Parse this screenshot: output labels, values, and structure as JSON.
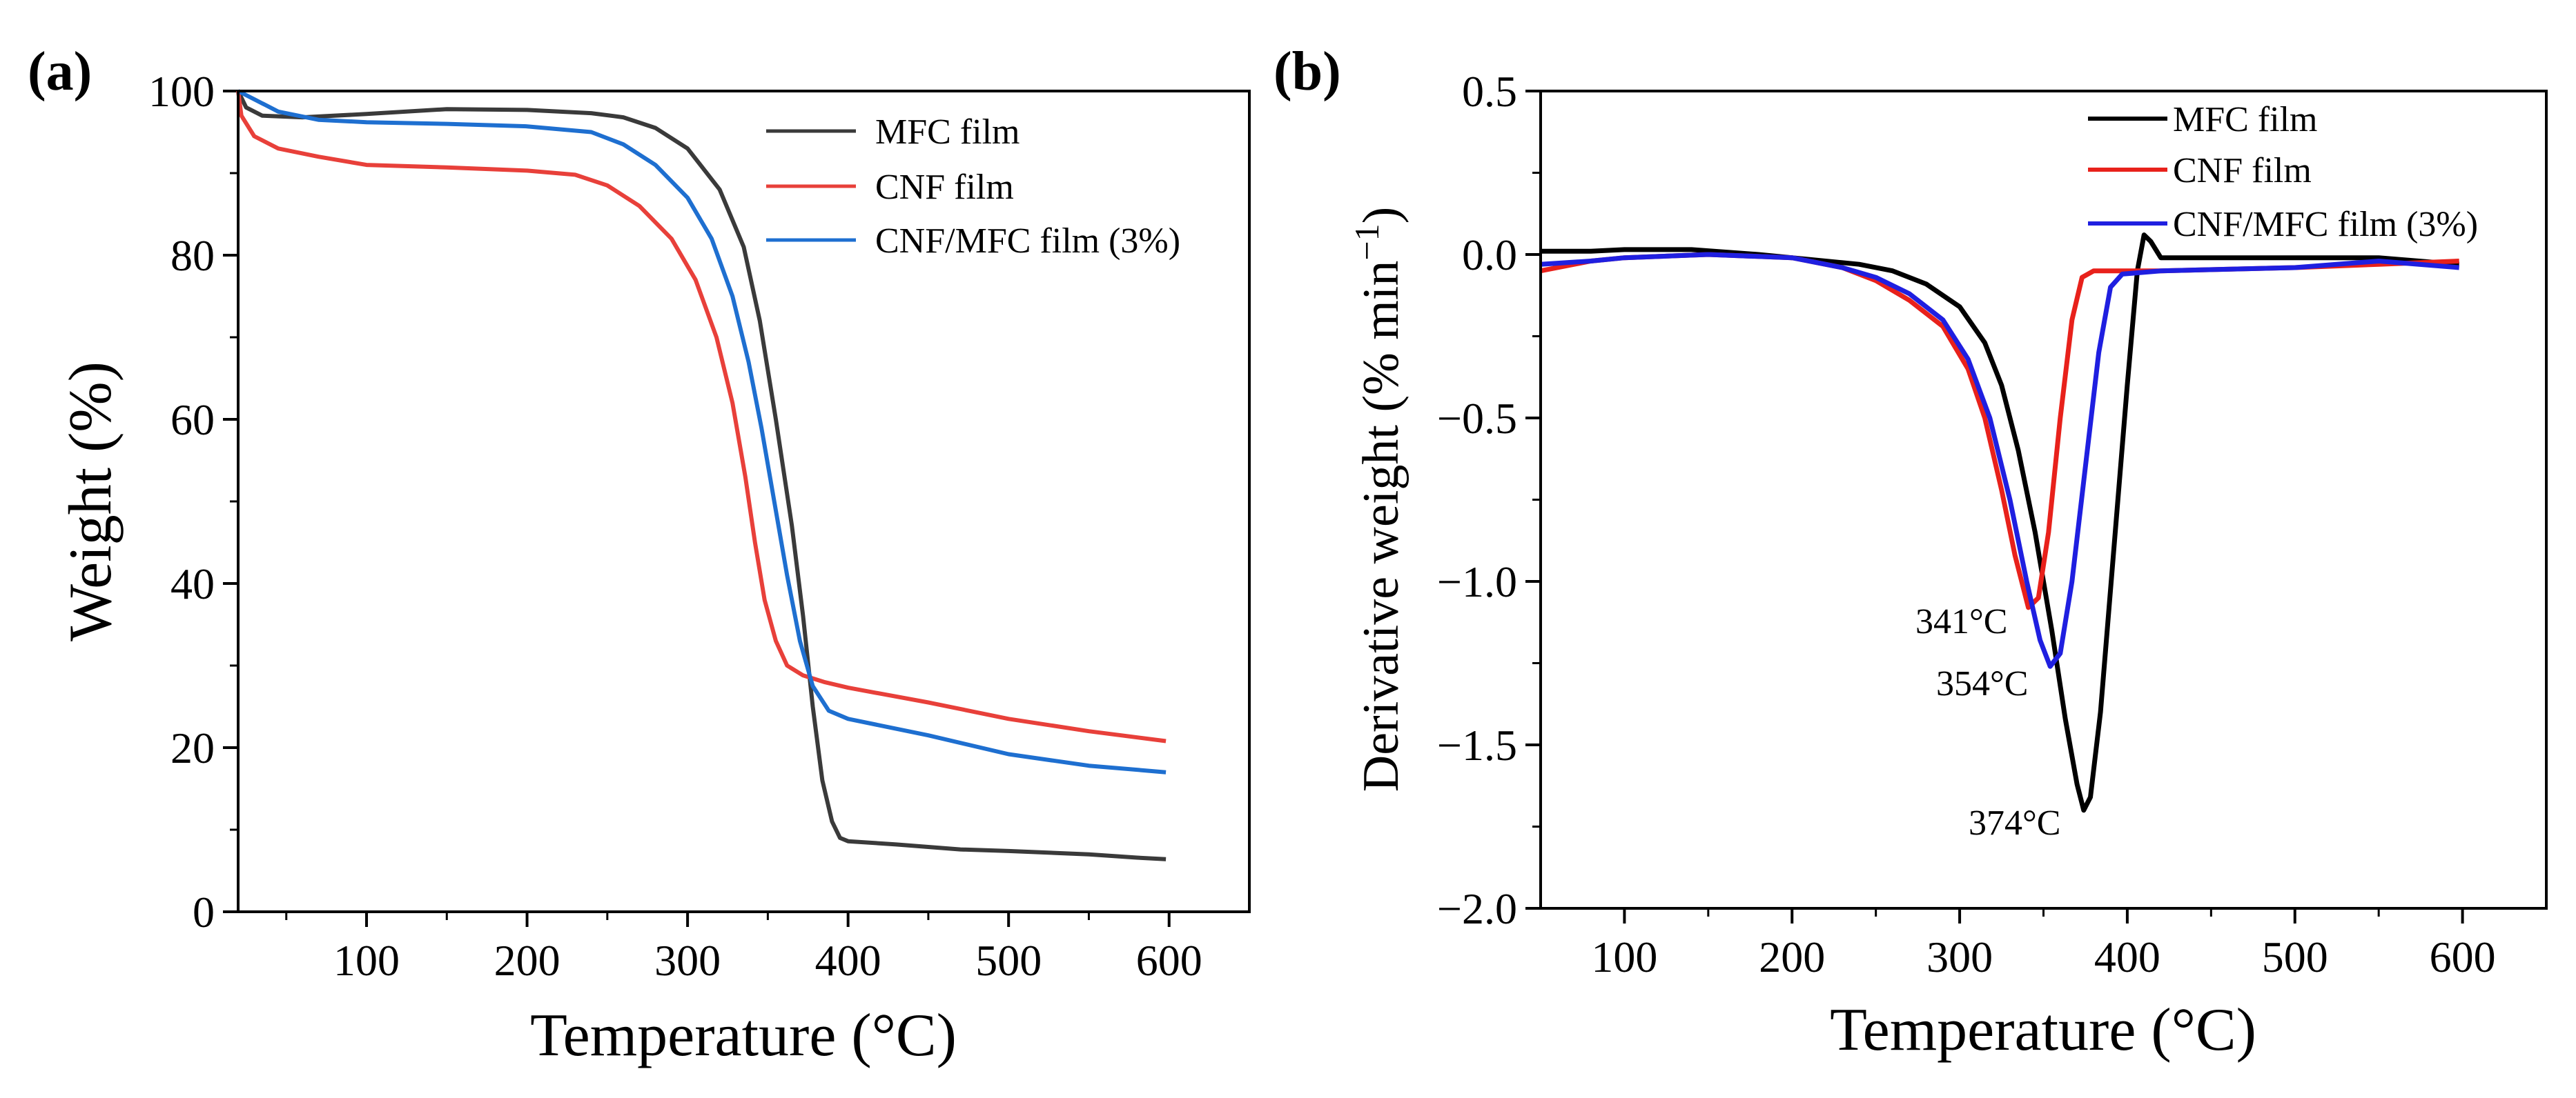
{
  "chart_data": [
    {
      "panel_label": "(a)",
      "type": "line",
      "title": "",
      "xlabel": "Temperature (°C)",
      "ylabel": "Weight (%)",
      "xlim": [
        20,
        650
      ],
      "ylim": [
        0,
        100
      ],
      "xticks": [
        100,
        200,
        300,
        400,
        500,
        600
      ],
      "yticks": [
        0,
        20,
        40,
        60,
        80,
        100
      ],
      "xtick_labels": [
        "100",
        "200",
        "300",
        "400",
        "500",
        "600"
      ],
      "ytick_labels": [
        "0",
        "20",
        "40",
        "60",
        "80",
        "100"
      ],
      "legend_position": "top-right",
      "series": [
        {
          "name": "MFC film",
          "color": "#3a3a3a",
          "points": [
            [
              20,
              100
            ],
            [
              25,
              98
            ],
            [
              35,
              97
            ],
            [
              60,
              96.8
            ],
            [
              100,
              97.2
            ],
            [
              150,
              97.8
            ],
            [
              200,
              97.7
            ],
            [
              240,
              97.3
            ],
            [
              260,
              96.8
            ],
            [
              280,
              95.5
            ],
            [
              300,
              93
            ],
            [
              320,
              88
            ],
            [
              335,
              81
            ],
            [
              345,
              72
            ],
            [
              355,
              60
            ],
            [
              365,
              47
            ],
            [
              372,
              36
            ],
            [
              378,
              25
            ],
            [
              384,
              16
            ],
            [
              390,
              11
            ],
            [
              395,
              9
            ],
            [
              400,
              8.6
            ],
            [
              430,
              8.2
            ],
            [
              470,
              7.6
            ],
            [
              500,
              7.4
            ],
            [
              550,
              7
            ],
            [
              580,
              6.6
            ],
            [
              598,
              6.4
            ]
          ]
        },
        {
          "name": "CNF film",
          "color": "#e8403a",
          "points": [
            [
              20,
              100
            ],
            [
              22,
              97
            ],
            [
              30,
              94.5
            ],
            [
              45,
              93
            ],
            [
              70,
              92
            ],
            [
              100,
              91
            ],
            [
              150,
              90.7
            ],
            [
              200,
              90.3
            ],
            [
              230,
              89.8
            ],
            [
              250,
              88.5
            ],
            [
              270,
              86
            ],
            [
              290,
              82
            ],
            [
              305,
              77
            ],
            [
              318,
              70
            ],
            [
              328,
              62
            ],
            [
              336,
              53
            ],
            [
              342,
              45
            ],
            [
              348,
              38
            ],
            [
              355,
              33
            ],
            [
              362,
              30
            ],
            [
              372,
              28.8
            ],
            [
              385,
              28
            ],
            [
              400,
              27.3
            ],
            [
              450,
              25.5
            ],
            [
              500,
              23.5
            ],
            [
              550,
              22
            ],
            [
              598,
              20.8
            ]
          ]
        },
        {
          "name": "CNF/MFC film (3%)",
          "color": "#1e6fd0",
          "points": [
            [
              20,
              100
            ],
            [
              30,
              99
            ],
            [
              45,
              97.5
            ],
            [
              70,
              96.5
            ],
            [
              100,
              96.2
            ],
            [
              150,
              96
            ],
            [
              200,
              95.7
            ],
            [
              240,
              95
            ],
            [
              260,
              93.5
            ],
            [
              280,
              91
            ],
            [
              300,
              87
            ],
            [
              315,
              82
            ],
            [
              328,
              75
            ],
            [
              338,
              67
            ],
            [
              346,
              59
            ],
            [
              354,
              50
            ],
            [
              362,
              41
            ],
            [
              370,
              33
            ],
            [
              378,
              27.5
            ],
            [
              388,
              24.5
            ],
            [
              400,
              23.5
            ],
            [
              450,
              21.5
            ],
            [
              500,
              19.2
            ],
            [
              550,
              17.8
            ],
            [
              598,
              17
            ]
          ]
        }
      ]
    },
    {
      "panel_label": "(b)",
      "type": "line",
      "title": "",
      "xlabel": "Temperature (°C)",
      "ylabel": "Derivative weight (% min",
      "ylabel_superscript": "−1",
      "ylabel_close": ")",
      "xlim": [
        50,
        650
      ],
      "ylim": [
        -2.0,
        0.5
      ],
      "xticks": [
        100,
        200,
        300,
        400,
        500,
        600
      ],
      "yticks": [
        0.5,
        0.0,
        -0.5,
        -1.0,
        -1.5,
        -2.0
      ],
      "xtick_labels": [
        "100",
        "200",
        "300",
        "400",
        "500",
        "600"
      ],
      "ytick_labels": [
        "0.5",
        "0.0",
        "−0.5",
        "−1.0",
        "−1.5",
        "−2.0"
      ],
      "legend_position": "top-right",
      "annotations": [
        {
          "text": "341°C",
          "x": 341,
          "y": -1.08
        },
        {
          "text": "354°C",
          "x": 354,
          "y": -1.26
        },
        {
          "text": "374°C",
          "x": 374,
          "y": -1.7
        }
      ],
      "series": [
        {
          "name": "MFC film",
          "color": "#000000",
          "points": [
            [
              50,
              0.01
            ],
            [
              80,
              0.01
            ],
            [
              100,
              0.015
            ],
            [
              140,
              0.015
            ],
            [
              180,
              0.0
            ],
            [
              220,
              -0.02
            ],
            [
              240,
              -0.03
            ],
            [
              260,
              -0.05
            ],
            [
              280,
              -0.09
            ],
            [
              300,
              -0.16
            ],
            [
              315,
              -0.27
            ],
            [
              325,
              -0.4
            ],
            [
              335,
              -0.6
            ],
            [
              345,
              -0.85
            ],
            [
              355,
              -1.15
            ],
            [
              363,
              -1.42
            ],
            [
              370,
              -1.62
            ],
            [
              374,
              -1.7
            ],
            [
              378,
              -1.66
            ],
            [
              384,
              -1.4
            ],
            [
              392,
              -0.9
            ],
            [
              400,
              -0.4
            ],
            [
              406,
              -0.05
            ],
            [
              410,
              0.06
            ],
            [
              414,
              0.04
            ],
            [
              420,
              -0.01
            ],
            [
              450,
              -0.01
            ],
            [
              500,
              -0.01
            ],
            [
              550,
              -0.01
            ],
            [
              598,
              -0.03
            ]
          ]
        },
        {
          "name": "CNF film",
          "color": "#e8211b",
          "points": [
            [
              50,
              -0.05
            ],
            [
              80,
              -0.02
            ],
            [
              100,
              -0.01
            ],
            [
              150,
              0.0
            ],
            [
              200,
              -0.01
            ],
            [
              230,
              -0.04
            ],
            [
              250,
              -0.08
            ],
            [
              270,
              -0.14
            ],
            [
              290,
              -0.22
            ],
            [
              305,
              -0.35
            ],
            [
              315,
              -0.5
            ],
            [
              325,
              -0.72
            ],
            [
              333,
              -0.92
            ],
            [
              341,
              -1.08
            ],
            [
              347,
              -1.05
            ],
            [
              353,
              -0.85
            ],
            [
              360,
              -0.5
            ],
            [
              367,
              -0.2
            ],
            [
              373,
              -0.07
            ],
            [
              380,
              -0.05
            ],
            [
              420,
              -0.05
            ],
            [
              500,
              -0.04
            ],
            [
              550,
              -0.03
            ],
            [
              598,
              -0.02
            ]
          ]
        },
        {
          "name": "CNF/MFC film (3%)",
          "color": "#1f1fe0",
          "points": [
            [
              50,
              -0.03
            ],
            [
              80,
              -0.02
            ],
            [
              100,
              -0.01
            ],
            [
              150,
              0.0
            ],
            [
              200,
              -0.01
            ],
            [
              230,
              -0.04
            ],
            [
              250,
              -0.07
            ],
            [
              270,
              -0.12
            ],
            [
              290,
              -0.2
            ],
            [
              305,
              -0.32
            ],
            [
              318,
              -0.5
            ],
            [
              330,
              -0.75
            ],
            [
              340,
              -1.0
            ],
            [
              348,
              -1.18
            ],
            [
              354,
              -1.26
            ],
            [
              360,
              -1.22
            ],
            [
              367,
              -1.0
            ],
            [
              375,
              -0.65
            ],
            [
              383,
              -0.3
            ],
            [
              390,
              -0.1
            ],
            [
              397,
              -0.06
            ],
            [
              420,
              -0.05
            ],
            [
              500,
              -0.04
            ],
            [
              550,
              -0.02
            ],
            [
              598,
              -0.04
            ]
          ]
        }
      ]
    }
  ]
}
